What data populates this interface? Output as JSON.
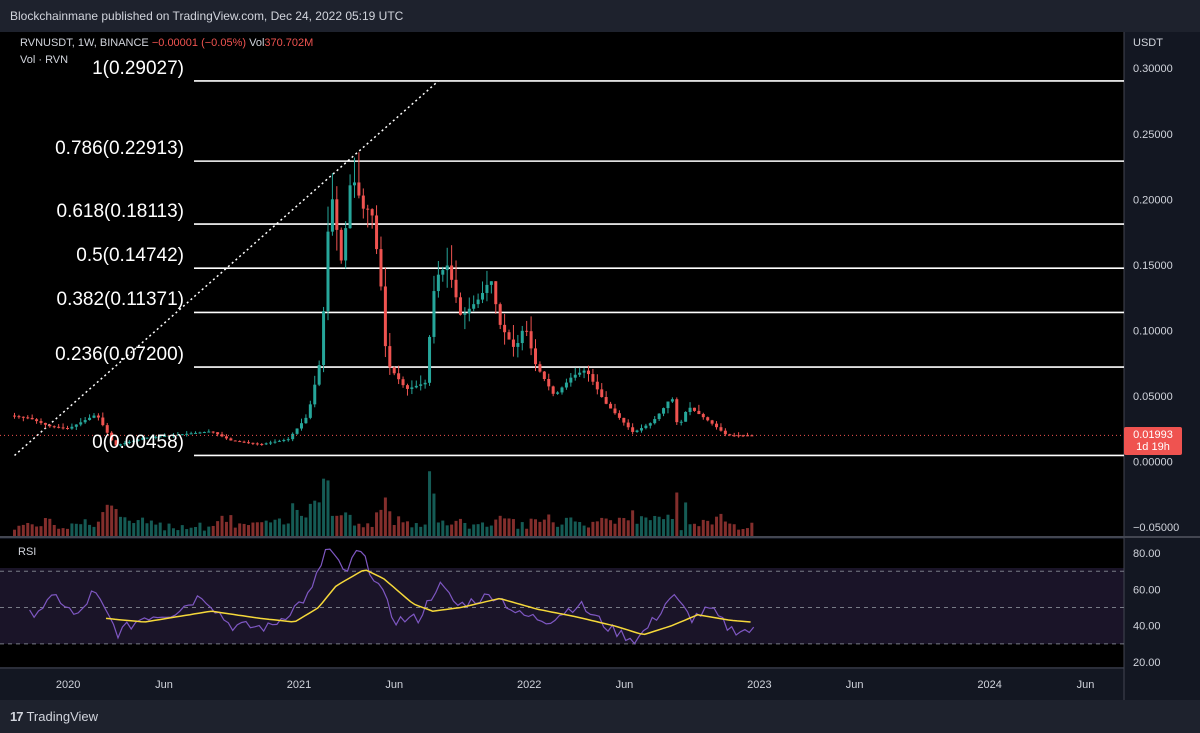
{
  "publisher": {
    "text": "Blockchainmane published on TradingView.com, Dec 24, 2022 05:19 UTC"
  },
  "legend": {
    "symbol": "RVNUSDT, 1W, BINANCE",
    "change": "−0.00001 (−0.05%)",
    "vol_label": "Vol",
    "vol_value": "370.702M",
    "vol_series": "Vol · RVN"
  },
  "price_axis": {
    "unit": "USDT",
    "ticks": [
      "0.30000",
      "0.25000",
      "0.20000",
      "0.15000",
      "0.10000",
      "0.05000",
      "0.00000",
      "−0.05000"
    ]
  },
  "price_tag": {
    "price": "0.01993",
    "countdown": "1d 19h"
  },
  "rsi": {
    "title": "RSI",
    "ticks": [
      "80.00",
      "60.00",
      "40.00",
      "20.00"
    ]
  },
  "time_axis": {
    "labels": [
      "2020",
      "Jun",
      "2021",
      "Jun",
      "2022",
      "Jun",
      "2023",
      "Jun",
      "2024",
      "Jun"
    ]
  },
  "brand": {
    "logo": "17",
    "name": "TradingView"
  },
  "colors": {
    "up": "#26a69a",
    "down": "#ef5350",
    "rsi_line": "#7e57c2",
    "rsi_ma": "#f5d83a",
    "fib_line": "#ffffff",
    "background": "#000000"
  },
  "chart_data": {
    "type": "candlestick",
    "title": "",
    "xlabel": "",
    "ylabel": "USDT",
    "x_range": [
      "2019-09-15",
      "2024-08-01"
    ],
    "ylim": [
      -0.05,
      0.32
    ],
    "fib_levels": [
      {
        "label": "1(0.29027)",
        "value": 0.29027
      },
      {
        "label": "0.786(0.22913)",
        "value": 0.22913
      },
      {
        "label": "0.618(0.18113)",
        "value": 0.18113
      },
      {
        "label": "0.5(0.14742)",
        "value": 0.14742
      },
      {
        "label": "0.382(0.11371)",
        "value": 0.11371
      },
      {
        "label": "0.236(0.07200)",
        "value": 0.072
      },
      {
        "label": "0(0.00458)",
        "value": 0.00458
      }
    ],
    "trend_line": [
      {
        "date": "2019-10-08",
        "value": 0.00458
      },
      {
        "date": "2021-08-10",
        "value": 0.29027
      }
    ],
    "price_path": [
      [
        "2019-10-01",
        0.035
      ],
      [
        "2019-11-01",
        0.033
      ],
      [
        "2019-12-01",
        0.027
      ],
      [
        "2020-01-01",
        0.025
      ],
      [
        "2020-02-15",
        0.036
      ],
      [
        "2020-03-15",
        0.012
      ],
      [
        "2020-05-01",
        0.018
      ],
      [
        "2020-06-15",
        0.02
      ],
      [
        "2020-08-15",
        0.023
      ],
      [
        "2020-09-15",
        0.016
      ],
      [
        "2020-11-01",
        0.013
      ],
      [
        "2020-12-15",
        0.017
      ],
      [
        "2021-01-15",
        0.035
      ],
      [
        "2021-02-05",
        0.08
      ],
      [
        "2021-02-20",
        0.21
      ],
      [
        "2021-03-10",
        0.15
      ],
      [
        "2021-03-25",
        0.22
      ],
      [
        "2021-04-15",
        0.19
      ],
      [
        "2021-04-25",
        0.195
      ],
      [
        "2021-05-10",
        0.14
      ],
      [
        "2021-05-20",
        0.075
      ],
      [
        "2021-06-20",
        0.055
      ],
      [
        "2021-07-20",
        0.06
      ],
      [
        "2021-08-05",
        0.14
      ],
      [
        "2021-08-25",
        0.15
      ],
      [
        "2021-09-15",
        0.11
      ],
      [
        "2021-10-15",
        0.125
      ],
      [
        "2021-11-01",
        0.14
      ],
      [
        "2021-11-15",
        0.105
      ],
      [
        "2021-12-10",
        0.085
      ],
      [
        "2021-12-25",
        0.105
      ],
      [
        "2022-01-10",
        0.075
      ],
      [
        "2022-02-10",
        0.05
      ],
      [
        "2022-03-10",
        0.065
      ],
      [
        "2022-04-01",
        0.07
      ],
      [
        "2022-05-01",
        0.045
      ],
      [
        "2022-06-15",
        0.022
      ],
      [
        "2022-07-15",
        0.03
      ],
      [
        "2022-08-01",
        0.04
      ],
      [
        "2022-08-15",
        0.05
      ],
      [
        "2022-08-25",
        0.025
      ],
      [
        "2022-09-10",
        0.042
      ],
      [
        "2022-10-15",
        0.03
      ],
      [
        "2022-11-10",
        0.02
      ],
      [
        "2022-12-24",
        0.01993
      ]
    ],
    "rsi_path": [
      [
        "2019-11-01",
        46
      ],
      [
        "2019-12-15",
        56
      ],
      [
        "2020-01-15",
        44
      ],
      [
        "2020-02-10",
        59
      ],
      [
        "2020-03-20",
        36
      ],
      [
        "2020-05-01",
        45
      ],
      [
        "2020-06-15",
        47
      ],
      [
        "2020-08-01",
        57
      ],
      [
        "2020-09-15",
        40
      ],
      [
        "2020-11-15",
        39
      ],
      [
        "2020-12-15",
        47
      ],
      [
        "2021-01-20",
        58
      ],
      [
        "2021-02-15",
        84
      ],
      [
        "2021-03-15",
        68
      ],
      [
        "2021-04-05",
        82
      ],
      [
        "2021-05-05",
        64
      ],
      [
        "2021-06-01",
        43
      ],
      [
        "2021-07-10",
        44
      ],
      [
        "2021-08-10",
        63
      ],
      [
        "2021-09-10",
        51
      ],
      [
        "2021-10-15",
        55
      ],
      [
        "2021-11-10",
        57
      ],
      [
        "2021-12-15",
        46
      ],
      [
        "2022-02-01",
        43
      ],
      [
        "2022-03-20",
        52
      ],
      [
        "2022-05-10",
        38
      ],
      [
        "2022-06-20",
        32
      ],
      [
        "2022-07-20",
        44
      ],
      [
        "2022-08-15",
        57
      ],
      [
        "2022-09-15",
        44
      ],
      [
        "2022-10-15",
        49
      ],
      [
        "2022-11-15",
        38
      ],
      [
        "2022-12-24",
        37
      ]
    ],
    "rsi_ma_path": [
      [
        "2020-03-01",
        44
      ],
      [
        "2020-05-01",
        42
      ],
      [
        "2020-08-15",
        48
      ],
      [
        "2020-11-01",
        44
      ],
      [
        "2020-12-25",
        42
      ],
      [
        "2021-02-01",
        50
      ],
      [
        "2021-03-01",
        62
      ],
      [
        "2021-04-15",
        71
      ],
      [
        "2021-05-15",
        66
      ],
      [
        "2021-07-01",
        52
      ],
      [
        "2021-08-01",
        48
      ],
      [
        "2021-09-15",
        50
      ],
      [
        "2021-11-15",
        55
      ],
      [
        "2022-01-15",
        49
      ],
      [
        "2022-03-15",
        45
      ],
      [
        "2022-05-15",
        40
      ],
      [
        "2022-07-01",
        35
      ],
      [
        "2022-08-15",
        40
      ],
      [
        "2022-09-25",
        46
      ],
      [
        "2022-11-15",
        43
      ],
      [
        "2022-12-20",
        42
      ]
    ],
    "rsi_ylim": [
      20,
      85
    ],
    "rsi_bands": [
      70,
      50,
      30
    ],
    "grid": false,
    "legend": "top-left"
  }
}
